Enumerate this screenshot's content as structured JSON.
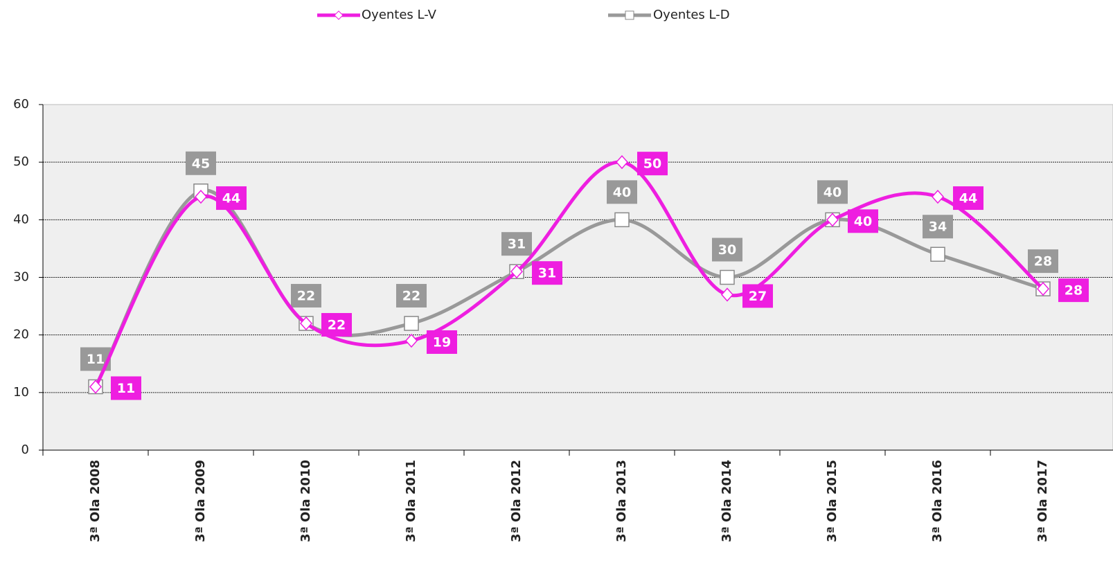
{
  "chart_data": {
    "type": "line",
    "categories": [
      "3ª Ola 2008",
      "3ª Ola 2009",
      "3ª Ola 2010",
      "3ª Ola 2011",
      "3ª Ola 2012",
      "3ª Ola 2013",
      "3ª Ola 2014",
      "3ª Ola 2015",
      "3ª Ola 2016",
      "3ª Ola 2017"
    ],
    "series": [
      {
        "name": "Oyentes L-V",
        "color": "#ee1ee0",
        "values": [
          11,
          44,
          22,
          19,
          31,
          50,
          27,
          40,
          44,
          28
        ]
      },
      {
        "name": "Oyentes L-D",
        "color": "#999999",
        "values": [
          11,
          45,
          22,
          22,
          31,
          40,
          30,
          40,
          34,
          28
        ]
      }
    ],
    "ylim": [
      0,
      60
    ],
    "yticks": [
      0,
      10,
      20,
      30,
      40,
      50,
      60
    ],
    "grid": true,
    "legend": "top"
  }
}
